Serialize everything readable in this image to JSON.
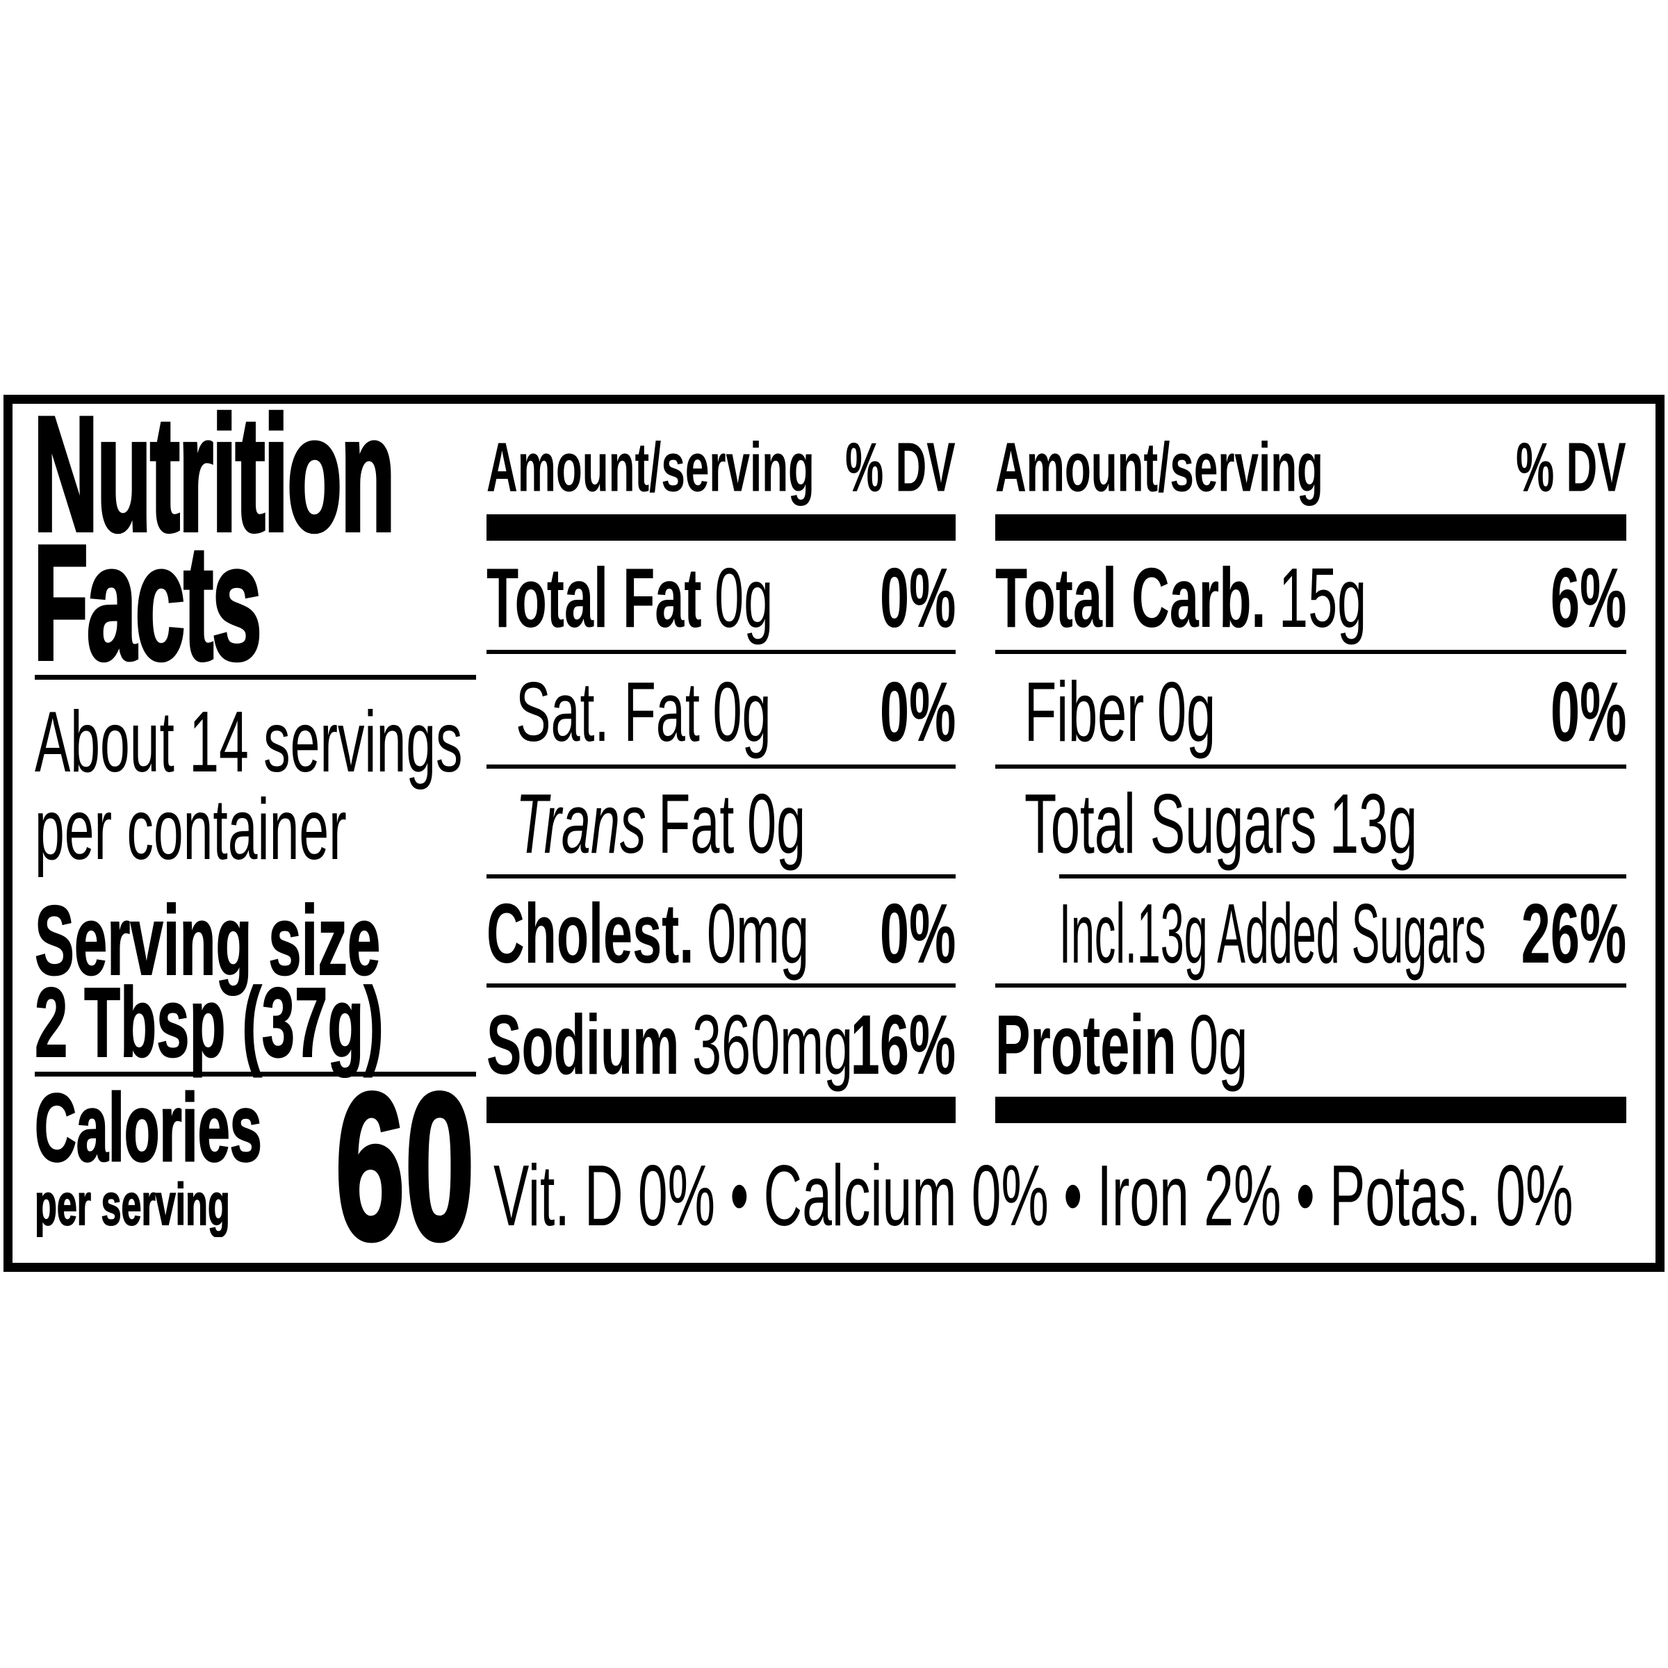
{
  "colors": {
    "ink": "#000000",
    "paper": "#ffffff"
  },
  "title": {
    "line1": "Nutrition",
    "line2": "Facts"
  },
  "servings": {
    "line1": "About 14 servings",
    "line2": "per container"
  },
  "serving_size": {
    "label": "Serving size",
    "value": "2 Tbsp (37g)"
  },
  "calories": {
    "label": "Calories",
    "sublabel": "per serving",
    "value": "60"
  },
  "columns_header": {
    "amount": "Amount/serving",
    "dv": "% DV"
  },
  "mid_rows": [
    {
      "name": "Total Fat",
      "value": "0g",
      "dv": "0%"
    },
    {
      "name": "Sat. Fat",
      "value": "0g",
      "dv": "0%"
    },
    {
      "name_italic": "Trans",
      "name": "Fat",
      "value": "0g",
      "dv": ""
    },
    {
      "name": "Cholest.",
      "value": "0mg",
      "dv": "0%"
    },
    {
      "name": "Sodium",
      "value": "360mg",
      "dv": "16%"
    }
  ],
  "right_rows": [
    {
      "name": "Total Carb.",
      "value": "15g",
      "dv": "6%"
    },
    {
      "name": "Fiber",
      "value": "0g",
      "dv": "0%"
    },
    {
      "name": "Total Sugars",
      "value": "13g",
      "dv": ""
    },
    {
      "name": "Incl.13g Added Sugars",
      "value": "",
      "dv": "26%"
    },
    {
      "name": "Protein",
      "value": "0g",
      "dv": ""
    }
  ],
  "micronutrients": "Vit. D 0% • Calcium 0% • Iron 2% • Potas. 0%"
}
